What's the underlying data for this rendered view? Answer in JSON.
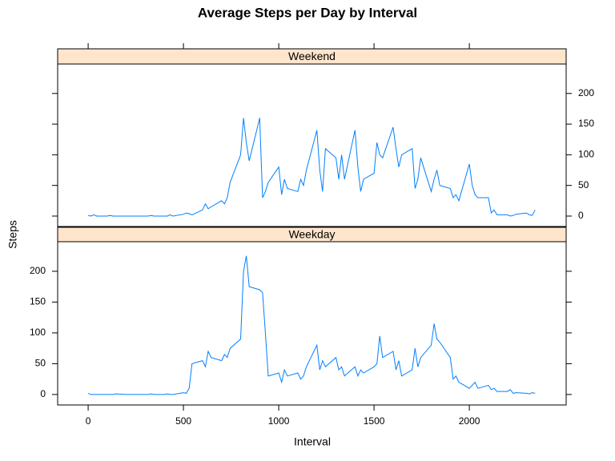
{
  "chart_data": {
    "type": "line",
    "title": "Average Steps per Day by Interval",
    "xlabel": "Interval",
    "ylabel": "Steps",
    "x": [
      0,
      15,
      30,
      45,
      100,
      115,
      130,
      145,
      200,
      215,
      230,
      245,
      300,
      315,
      330,
      345,
      400,
      415,
      430,
      445,
      500,
      515,
      530,
      545,
      600,
      615,
      630,
      645,
      700,
      715,
      730,
      745,
      800,
      815,
      830,
      845,
      900,
      915,
      930,
      945,
      1000,
      1015,
      1030,
      1045,
      1100,
      1115,
      1130,
      1145,
      1200,
      1215,
      1230,
      1245,
      1300,
      1315,
      1330,
      1345,
      1400,
      1415,
      1430,
      1445,
      1500,
      1515,
      1530,
      1545,
      1600,
      1615,
      1630,
      1645,
      1700,
      1715,
      1730,
      1745,
      1800,
      1815,
      1830,
      1845,
      1900,
      1915,
      1930,
      1945,
      2000,
      2015,
      2030,
      2045,
      2100,
      2115,
      2130,
      2145,
      2200,
      2215,
      2230,
      2245,
      2300,
      2315,
      2330,
      2345
    ],
    "series": [
      {
        "name": "Weekend",
        "color": "#0080ff",
        "values": [
          1,
          0,
          2,
          0,
          0,
          1,
          0,
          0,
          0,
          0,
          0,
          0,
          0,
          0,
          1,
          0,
          0,
          0,
          2,
          0,
          3,
          5,
          4,
          2,
          10,
          20,
          12,
          15,
          25,
          20,
          30,
          55,
          100,
          160,
          120,
          90,
          160,
          30,
          40,
          55,
          80,
          35,
          60,
          45,
          40,
          60,
          50,
          75,
          140,
          75,
          40,
          110,
          95,
          60,
          100,
          60,
          140,
          80,
          40,
          60,
          70,
          120,
          100,
          95,
          145,
          110,
          80,
          100,
          110,
          45,
          60,
          95,
          40,
          60,
          75,
          50,
          45,
          30,
          35,
          25,
          85,
          50,
          35,
          30,
          30,
          5,
          10,
          2,
          2,
          0,
          1,
          3,
          5,
          2,
          1,
          10
        ]
      },
      {
        "name": "Weekday",
        "color": "#0080ff",
        "values": [
          2,
          0,
          0,
          0,
          0,
          0,
          0,
          1,
          0,
          0,
          0,
          0,
          0,
          0,
          1,
          0,
          0,
          1,
          0,
          0,
          3,
          2,
          10,
          50,
          55,
          45,
          70,
          60,
          55,
          65,
          60,
          75,
          90,
          200,
          225,
          175,
          170,
          165,
          100,
          30,
          35,
          20,
          40,
          30,
          35,
          25,
          30,
          45,
          80,
          40,
          55,
          45,
          60,
          40,
          45,
          30,
          45,
          30,
          40,
          35,
          45,
          50,
          95,
          60,
          70,
          40,
          55,
          30,
          40,
          75,
          45,
          60,
          80,
          115,
          90,
          85,
          60,
          25,
          30,
          20,
          10,
          15,
          20,
          10,
          15,
          8,
          10,
          5,
          5,
          8,
          2,
          3,
          2,
          1,
          3,
          2
        ]
      }
    ],
    "xlim": [
      -160,
      2508
    ],
    "xticks": [
      0,
      500,
      1000,
      1500,
      2000
    ],
    "ylim": [
      -17,
      248
    ],
    "yticks": [
      0,
      50,
      100,
      150,
      200
    ]
  }
}
